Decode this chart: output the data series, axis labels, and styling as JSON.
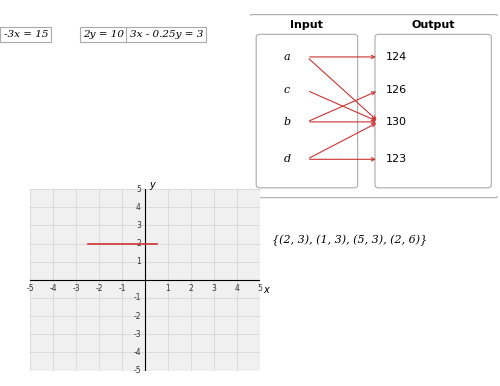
{
  "equations": [
    "-3x = 15",
    "2y = 10",
    "3x - 0.25y = 3"
  ],
  "mapping_connections": [
    [
      "a",
      "124"
    ],
    [
      "a",
      "130"
    ],
    [
      "b",
      "130"
    ],
    [
      "b",
      "126"
    ],
    [
      "c",
      "130"
    ],
    [
      "d",
      "123"
    ],
    [
      "d",
      "130"
    ]
  ],
  "set_text": "{(2, 3), (1, 3), (5, 3), (2, 6)}",
  "line_y": 2.0,
  "line_x_start": -2.5,
  "line_x_end": 0.5,
  "xlim": [
    -5,
    5
  ],
  "ylim": [
    -5,
    5
  ],
  "x_ticks": [
    -5,
    -4,
    -3,
    -2,
    -1,
    1,
    2,
    3,
    4,
    5
  ],
  "y_ticks": [
    -5,
    -4,
    -3,
    -2,
    -1,
    1,
    2,
    3,
    4,
    5
  ],
  "line_color": "#cc3333",
  "grid_color": "#cccccc",
  "plot_bg": "#f0f0f0"
}
